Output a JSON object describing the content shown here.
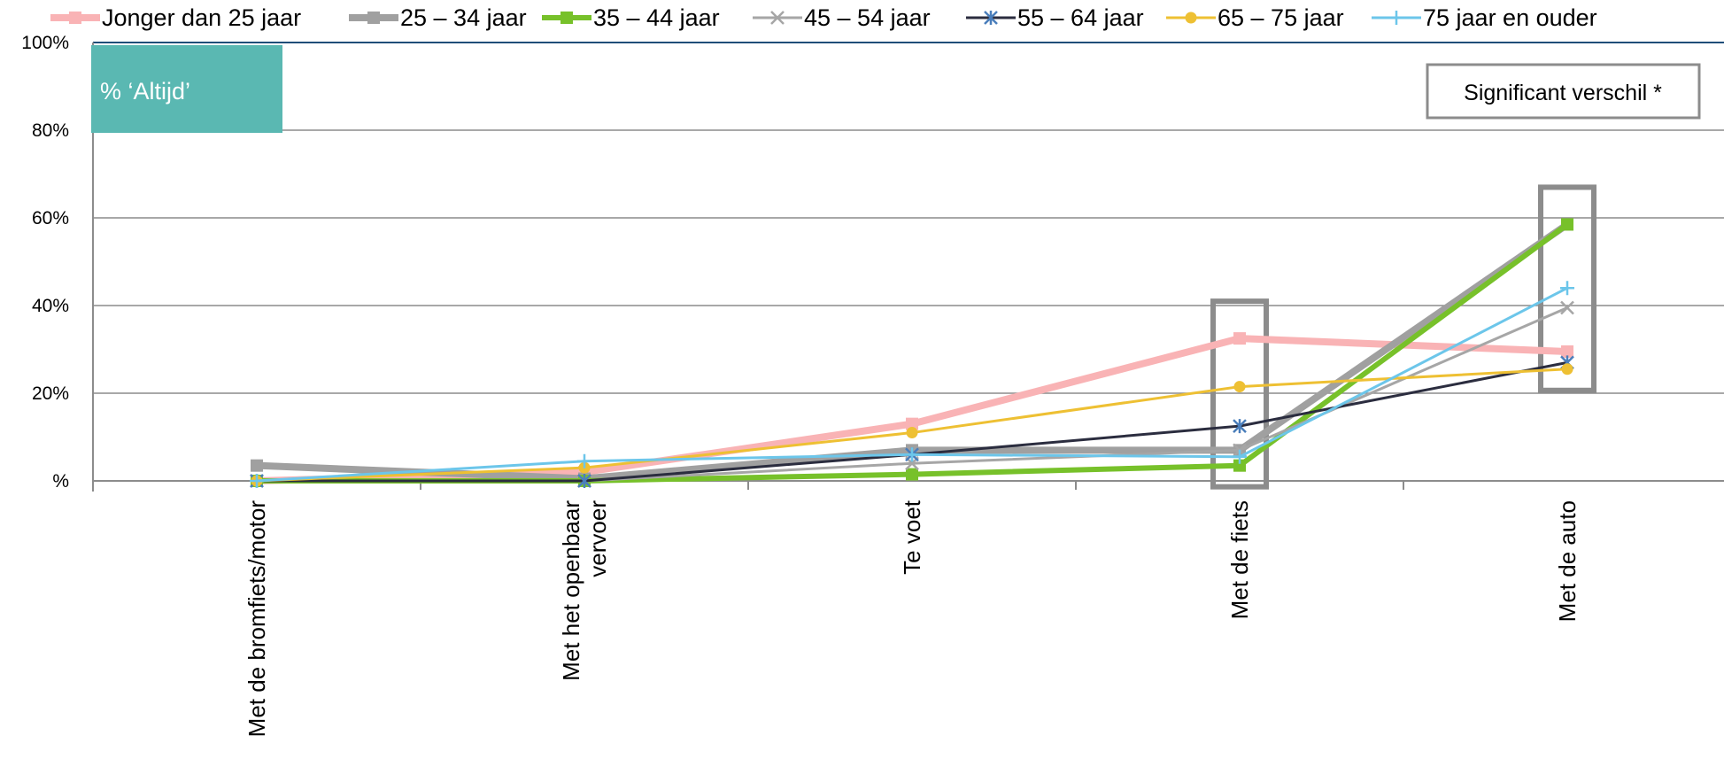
{
  "chart_data": {
    "type": "line",
    "title": "",
    "badge": "% ‘Altijd’",
    "annotation": "Significant verschil *",
    "categories": [
      "Met de bromfiets/motor",
      "Met het openbaar vervoer",
      "Te voet",
      "Met de fiets",
      "Met de auto"
    ],
    "ylim": [
      0,
      100
    ],
    "yticks": [
      0,
      20,
      40,
      60,
      80,
      100
    ],
    "ytick_labels": [
      "%",
      "20%",
      "40%",
      "60%",
      "80%",
      "100%"
    ],
    "grid": true,
    "legend_position": "top",
    "highlighted_categories": [
      "Met de fiets",
      "Met de auto"
    ],
    "series": [
      {
        "name": "Jonger dan 25 jaar",
        "color": "#F9B3B5",
        "marker": "square",
        "width": 8,
        "values": [
          0,
          2,
          13,
          32.5,
          29.5
        ]
      },
      {
        "name": "25 – 34 jaar",
        "color": "#A0A0A0",
        "marker": "square",
        "width": 8,
        "values": [
          3.5,
          0.5,
          7,
          7,
          58.5
        ]
      },
      {
        "name": "35 – 44 jaar",
        "color": "#77C12A",
        "marker": "square",
        "width": 6,
        "values": [
          0,
          0,
          1.5,
          3.5,
          58.5
        ]
      },
      {
        "name": "45 – 54 jaar",
        "color": "#A6A6A6",
        "marker": "x",
        "width": 3,
        "values": [
          0,
          0,
          4,
          7,
          39.5
        ]
      },
      {
        "name": "55 – 64 jaar",
        "color": "#2B2D3F",
        "marker": "star",
        "width": 3,
        "values": [
          0,
          0,
          6,
          12.5,
          27
        ]
      },
      {
        "name": "65 – 75 jaar",
        "color": "#EEC033",
        "marker": "circle",
        "width": 3,
        "values": [
          0,
          3,
          11,
          21.5,
          25.5
        ]
      },
      {
        "name": "75 jaar en ouder",
        "color": "#6CC6EA",
        "marker": "plus",
        "width": 3,
        "values": [
          0,
          4.5,
          6,
          5.5,
          44
        ]
      }
    ]
  }
}
